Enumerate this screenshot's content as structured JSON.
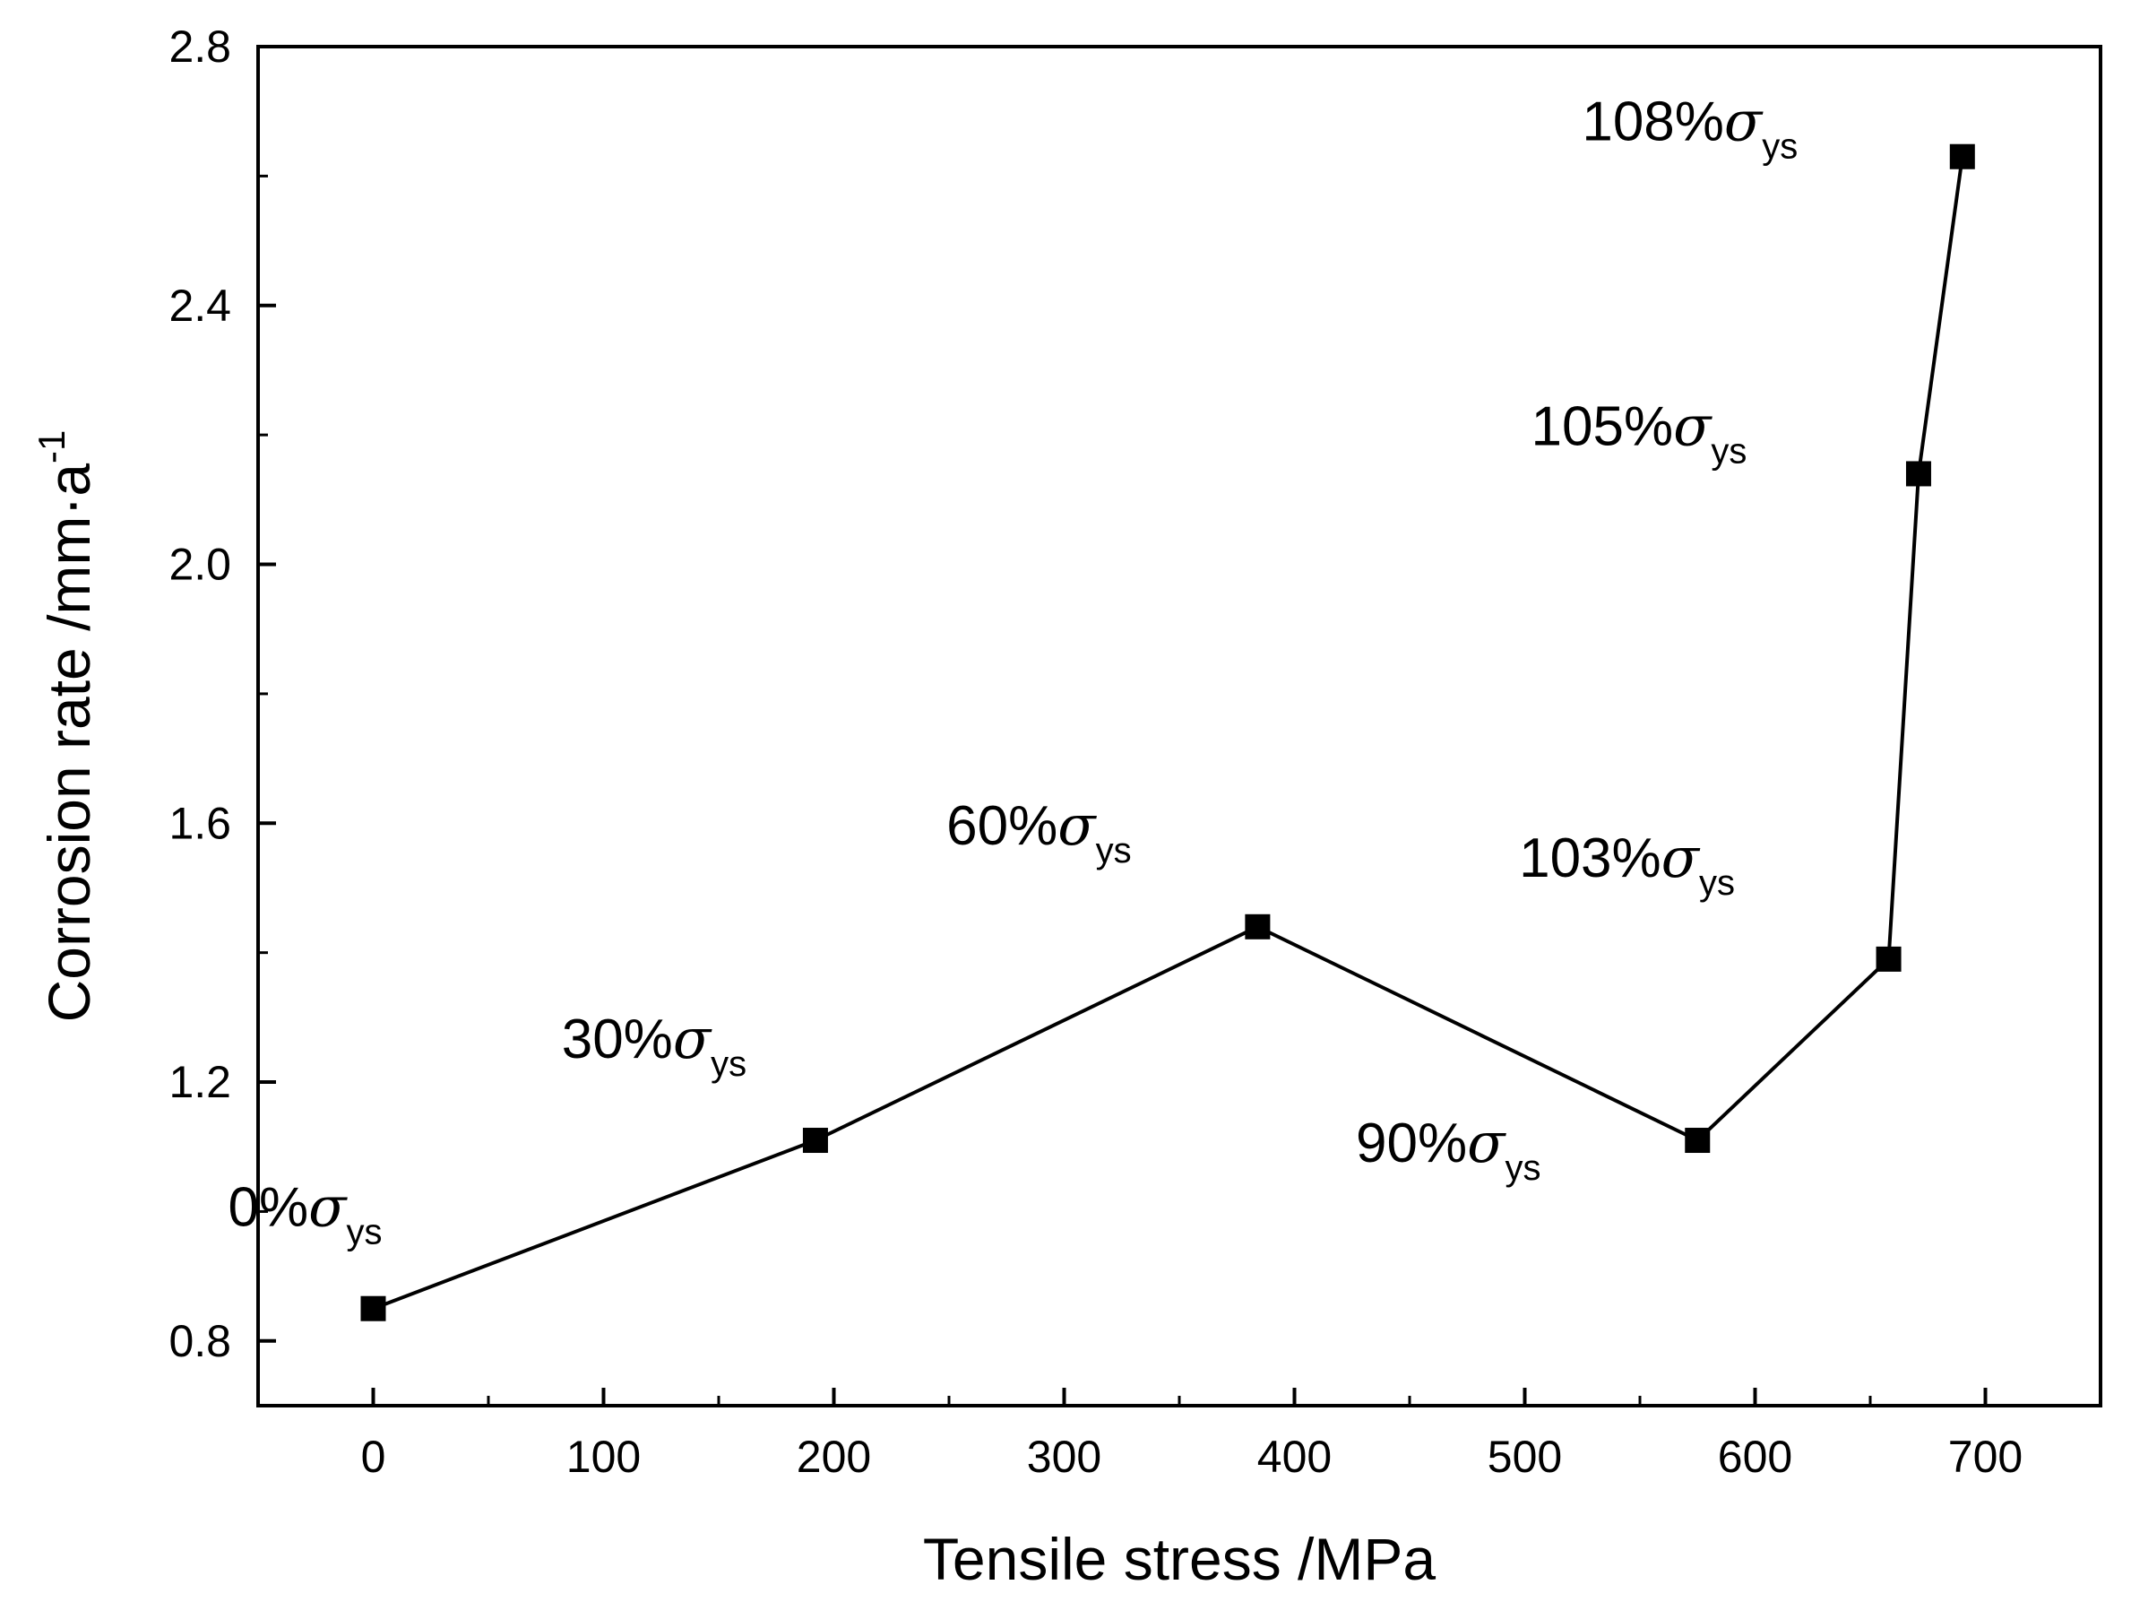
{
  "chart_data": {
    "type": "line",
    "title": "",
    "xlabel": "Tensile stress /MPa",
    "ylabel_main": "Corrosion rate /mm·a",
    "ylabel_sup": "-1",
    "xlim": [
      -50,
      750
    ],
    "ylim": [
      0.7,
      2.8
    ],
    "x_major_ticks": [
      0,
      100,
      200,
      300,
      400,
      500,
      600,
      700
    ],
    "x_tick_labels": [
      "0",
      "100",
      "200",
      "300",
      "400",
      "500",
      "600",
      "700"
    ],
    "x_minor_ticks": [
      50,
      150,
      250,
      350,
      450,
      550,
      650
    ],
    "y_major_ticks": [
      0.8,
      1.2,
      1.6,
      2.0,
      2.4,
      2.8
    ],
    "y_tick_labels": [
      "0.8",
      "1.2",
      "1.6",
      "2.0",
      "2.4",
      "2.8"
    ],
    "y_minor_ticks": [
      1.0,
      1.4,
      1.8,
      2.2,
      2.6
    ],
    "series": [
      {
        "name": "Corrosion rate",
        "marker": "square",
        "color": "#000000",
        "points": [
          {
            "x": 0,
            "y": 0.85,
            "label_pct": "0%",
            "label_symbol": "σ",
            "label_sub": "ys"
          },
          {
            "x": 192,
            "y": 1.11,
            "label_pct": "30%",
            "label_symbol": "σ",
            "label_sub": "ys"
          },
          {
            "x": 384,
            "y": 1.44,
            "label_pct": "60%",
            "label_symbol": "σ",
            "label_sub": "ys"
          },
          {
            "x": 575,
            "y": 1.11,
            "label_pct": "90%",
            "label_symbol": "σ",
            "label_sub": "ys"
          },
          {
            "x": 658,
            "y": 1.39,
            "label_pct": "103%",
            "label_symbol": "σ",
            "label_sub": "ys"
          },
          {
            "x": 671,
            "y": 2.14,
            "label_pct": "105%",
            "label_symbol": "σ",
            "label_sub": "ys"
          },
          {
            "x": 690,
            "y": 2.63,
            "label_pct": "108%",
            "label_symbol": "σ",
            "label_sub": "ys"
          }
        ]
      }
    ]
  }
}
